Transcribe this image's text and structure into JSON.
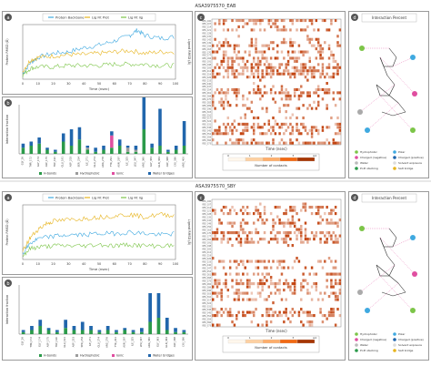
{
  "titles": {
    "top": "ASA3975570_EAB",
    "bottom": "ASA3975570_SBY"
  },
  "panel_letters": {
    "a": "a",
    "b": "b",
    "c": "c",
    "d": "d"
  },
  "legend_rmsd": [
    "Protein Backbone",
    "Lig Fit Prot",
    "Lig Fit lig"
  ],
  "legend_bars": [
    "H-bonds",
    "Hydrophobic",
    "Ionic",
    "Water bridges"
  ],
  "interaction_title": "Interaction Percent",
  "legend_interaction": [
    "Hydrophobic",
    "Polar",
    "Charged (negative)",
    "Charged (positive)",
    "Water",
    "Solvent exposure",
    "Pi-Pi stacking",
    "Salt bridge"
  ],
  "heatmap_xlabel": "Time (nsec)",
  "contacts_label": "Number of contacts",
  "colors": {
    "backbone": "#3fa9e0",
    "ligprot": "#e7b41e",
    "liglig": "#7cc548",
    "hbond": "#2b9a4a",
    "hydrophobic": "#9c9c9c",
    "ionic": "#e04ea0",
    "water": "#2166ac",
    "heat": "#c2410c"
  },
  "chart_data": [
    {
      "type": "line",
      "title": "ASA3975570_EAB RMSD",
      "xlabel": "Time (nsec)",
      "ylabel": "Protein RMSD (Å)",
      "y2label": "Ligand RMSD (Å)",
      "xlim": [
        0,
        100
      ],
      "x_ticks": [
        "0",
        "10",
        "20",
        "30",
        "40",
        "50",
        "60",
        "70",
        "80",
        "90",
        "100"
      ],
      "series": [
        {
          "name": "Protein Backbone",
          "x": [
            0,
            5,
            10,
            20,
            30,
            40,
            50,
            60,
            70,
            75,
            80,
            90,
            100
          ],
          "y": [
            0.4,
            1.2,
            1.6,
            1.9,
            2.0,
            2.3,
            2.5,
            2.8,
            3.2,
            3.6,
            3.2,
            3.0,
            3.1
          ]
        },
        {
          "name": "Lig Fit Prot",
          "x": [
            0,
            5,
            10,
            20,
            30,
            40,
            50,
            60,
            70,
            80,
            90,
            100
          ],
          "y": [
            0.6,
            1.4,
            1.6,
            1.7,
            1.8,
            1.8,
            1.9,
            2.0,
            2.1,
            1.9,
            2.0,
            2.0
          ]
        },
        {
          "name": "Lig Fit lig",
          "x": [
            0,
            5,
            10,
            20,
            30,
            40,
            50,
            60,
            70,
            80,
            90,
            100
          ],
          "y": [
            0.3,
            0.8,
            0.9,
            0.9,
            1.0,
            1.0,
            1.0,
            1.1,
            1.1,
            1.1,
            1.0,
            1.0
          ]
        }
      ]
    },
    {
      "type": "bar",
      "title": "ASA3975570_EAB interactions",
      "ylabel": "Interaction fraction",
      "categories": [
        "GLY_26",
        "THR_172",
        "GLY_174",
        "ASP_175",
        "TRP_190",
        "GLU_191",
        "ASP_233",
        "SER_234",
        "ILE_271",
        "GLU_274",
        "ARG_276",
        "TYR_291",
        "ASN_297",
        "ILE_325",
        "LEU_347",
        "ARG_360",
        "GLY_363",
        "GLN_364",
        "ASP_368",
        "LYS_390",
        "ARG_400"
      ],
      "series": [
        {
          "name": "H-bonds",
          "values": [
            0.15,
            0.2,
            0.25,
            0.1,
            0.05,
            0.3,
            0.2,
            0.35,
            0.1,
            0.05,
            0.1,
            0.15,
            0.2,
            0.05,
            0.05,
            0.6,
            0.15,
            0.2,
            0.05,
            0.1,
            0.2
          ]
        },
        {
          "name": "Hydrophobic",
          "values": [
            0,
            0,
            0,
            0,
            0,
            0,
            0,
            0,
            0.05,
            0,
            0,
            0,
            0,
            0.1,
            0.05,
            0,
            0,
            0,
            0,
            0,
            0
          ]
        },
        {
          "name": "Ionic",
          "values": [
            0,
            0,
            0,
            0,
            0,
            0,
            0,
            0,
            0,
            0,
            0,
            0.3,
            0,
            0,
            0,
            0,
            0,
            0,
            0,
            0,
            0
          ]
        },
        {
          "name": "Water bridges",
          "values": [
            0.1,
            0.1,
            0.15,
            0.05,
            0.05,
            0.2,
            0.4,
            0.3,
            0.05,
            0.1,
            0.1,
            0.1,
            0.15,
            0.05,
            0.1,
            1.05,
            0.1,
            0.9,
            0.05,
            0.1,
            0.6
          ]
        }
      ]
    },
    {
      "type": "heatmap",
      "title": "ASA3975570_EAB contacts",
      "xlabel": "Time (nsec)",
      "colorbar_ticks": [
        "0",
        "1",
        "2",
        "3",
        "≥4"
      ]
    },
    {
      "type": "line",
      "title": "ASA3975570_SBY RMSD",
      "xlabel": "Time (nsec)",
      "ylabel": "Protein RMSD (Å)",
      "y2label": "Ligand RMSD (Å)",
      "xlim": [
        0,
        100
      ],
      "x_ticks": [
        "0",
        "10",
        "20",
        "30",
        "40",
        "50",
        "60",
        "70",
        "80",
        "90",
        "100"
      ],
      "series": [
        {
          "name": "Protein Backbone",
          "x": [
            0,
            5,
            10,
            20,
            30,
            40,
            50,
            60,
            70,
            80,
            90,
            100
          ],
          "y": [
            0.4,
            1.2,
            1.5,
            1.7,
            1.8,
            1.8,
            1.9,
            1.9,
            2.0,
            1.9,
            1.8,
            1.9
          ]
        },
        {
          "name": "Lig Fit Prot",
          "x": [
            0,
            5,
            10,
            15,
            20,
            30,
            40,
            50,
            60,
            70,
            80,
            90,
            100
          ],
          "y": [
            0.6,
            1.6,
            2.2,
            2.6,
            2.8,
            2.9,
            3.0,
            3.1,
            3.2,
            3.3,
            3.1,
            3.3,
            3.2
          ]
        },
        {
          "name": "Lig Fit lig",
          "x": [
            0,
            5,
            10,
            20,
            30,
            40,
            50,
            60,
            70,
            80,
            90,
            100
          ],
          "y": [
            0.3,
            0.8,
            0.9,
            1.0,
            1.0,
            1.0,
            1.1,
            1.0,
            1.1,
            1.0,
            1.0,
            1.0
          ]
        }
      ]
    },
    {
      "type": "bar",
      "title": "ASA3975570_SBY interactions",
      "ylabel": "Interaction fraction",
      "categories": [
        "GLY_26",
        "THR_172",
        "GLY_174",
        "ASP_175",
        "TRP_190",
        "GLU_191",
        "ASP_233",
        "SER_234",
        "ILE_271",
        "GLU_274",
        "ARG_276",
        "TYR_291",
        "ASN_297",
        "ILE_325",
        "LEU_347",
        "ARG_360",
        "GLY_363",
        "GLN_364",
        "ASP_368",
        "LYS_390"
      ],
      "series": [
        {
          "name": "H-bonds",
          "values": [
            0.05,
            0.1,
            0.2,
            0.1,
            0.05,
            0.15,
            0.1,
            0.1,
            0.1,
            0.05,
            0.1,
            0.05,
            0.1,
            0.05,
            0.05,
            0.3,
            0.4,
            0.1,
            0.05,
            0.05
          ]
        },
        {
          "name": "Hydrophobic",
          "values": [
            0,
            0,
            0,
            0,
            0,
            0,
            0,
            0,
            0,
            0,
            0,
            0,
            0,
            0,
            0,
            0,
            0,
            0,
            0,
            0
          ]
        },
        {
          "name": "Ionic",
          "values": [
            0,
            0,
            0,
            0,
            0,
            0,
            0,
            0,
            0,
            0,
            0,
            0,
            0,
            0,
            0,
            0,
            0,
            0,
            0,
            0
          ]
        },
        {
          "name": "Water bridges",
          "values": [
            0.05,
            0.1,
            0.15,
            0.05,
            0.05,
            0.2,
            0.1,
            0.2,
            0.1,
            0.05,
            0.1,
            0.05,
            0.05,
            0.05,
            0.1,
            0.7,
            0.6,
            0.3,
            0.1,
            0.05
          ]
        }
      ]
    },
    {
      "type": "heatmap",
      "title": "ASA3975570_SBY contacts",
      "xlabel": "Time (nsec)",
      "colorbar_ticks": [
        "0",
        "1",
        "2",
        "3",
        "≥4"
      ]
    }
  ]
}
